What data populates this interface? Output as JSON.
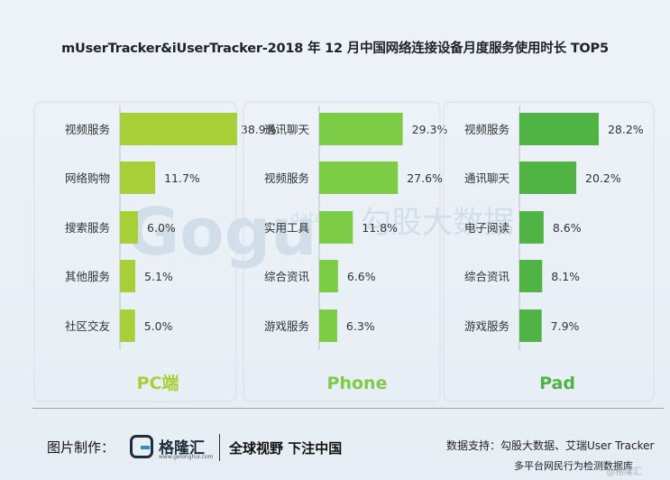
{
  "title": "mUserTracker&iUserTracker-2018 年 12 月中国网络连接设备月度服务使用时长 TOP5",
  "chart_data": [
    {
      "type": "bar",
      "panel": "PC端",
      "color": "#a6cf38",
      "categories": [
        "视频服务",
        "网络购物",
        "搜索服务",
        "其他服务",
        "社区交友"
      ],
      "values": [
        38.9,
        11.7,
        6.0,
        5.1,
        5.0
      ],
      "value_labels": [
        "38.9%",
        "11.7%",
        "6.0%",
        "5.1%",
        "5.0%"
      ],
      "unit": "%"
    },
    {
      "type": "bar",
      "panel": "Phone",
      "color": "#7ccc46",
      "categories": [
        "通讯聊天",
        "视频服务",
        "实用工具",
        "综合资讯",
        "游戏服务"
      ],
      "values": [
        29.3,
        27.6,
        11.8,
        6.6,
        6.3
      ],
      "value_labels": [
        "29.3%",
        "27.6%",
        "11.8%",
        "6.6%",
        "6.3%"
      ],
      "unit": "%"
    },
    {
      "type": "bar",
      "panel": "Pad",
      "color": "#4fb443",
      "categories": [
        "视频服务",
        "通讯聊天",
        "电子阅读",
        "综合资讯",
        "游戏服务"
      ],
      "values": [
        28.2,
        20.2,
        8.6,
        8.1,
        7.9
      ],
      "value_labels": [
        "28.2%",
        "20.2%",
        "8.6%",
        "8.1%",
        "7.9%"
      ],
      "unit": "%"
    }
  ],
  "watermark": {
    "text_latin": "Gogu",
    "text_data": "data",
    "text_cn": "勾股大数据"
  },
  "footer": {
    "made_by": "图片制作：",
    "logo_name": "格隆汇",
    "logo_url": "www.gelonghui.com",
    "slogan": "全球视野 下注中国",
    "source_line1": "数据支持：勾股大数据、艾瑞User Tracker",
    "source_line2": "多平台网民行为检测数据库",
    "corner_mark": "@格隆汇"
  }
}
